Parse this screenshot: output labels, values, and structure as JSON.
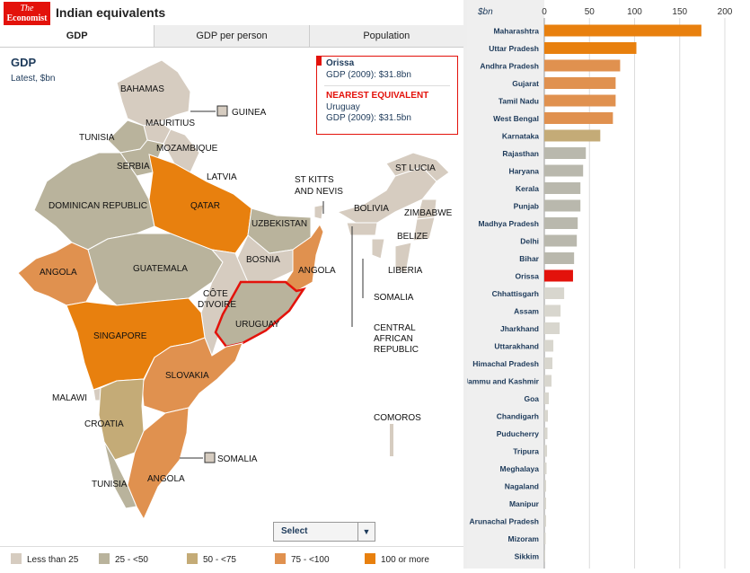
{
  "header": {
    "logo_line1": "The",
    "logo_line2": "Economist",
    "title": "Indian equivalents"
  },
  "tabs": [
    {
      "label": "GDP",
      "active": true
    },
    {
      "label": "GDP per person",
      "active": false
    },
    {
      "label": "Population",
      "active": false
    }
  ],
  "panel": {
    "title": "GDP",
    "subtitle": "Latest, $bn"
  },
  "infobox": {
    "state": "Orissa",
    "state_value": "GDP (2009): $31.8bn",
    "nearest_label": "NEAREST EQUIVALENT",
    "country": "Uruguay",
    "country_value": "GDP (2009): $31.5bn"
  },
  "map_labels": {
    "bahamas": "BAHAMAS",
    "guinea": "GUINEA",
    "mauritius": "MAURITIUS",
    "tunisia_north": "TUNISIA",
    "mozambique": "MOZAMBIQUE",
    "serbia": "SERBIA",
    "latvia": "LATVIA",
    "dominican": "DOMINICAN REPUBLIC",
    "qatar": "QATAR",
    "uzbekistan": "UZBEKISTAN",
    "stkitts1": "ST KITTS",
    "stkitts2": "AND NEVIS",
    "bolivia": "BOLIVIA",
    "stlucia": "ST LUCIA",
    "zimbabwe": "ZIMBABWE",
    "belize": "BELIZE",
    "angola_w": "ANGOLA",
    "guatemala": "GUATEMALA",
    "bosnia": "BOSNIA",
    "angola_e": "ANGOLA",
    "liberia": "LIBERIA",
    "cote1": "CÔTE",
    "cote2": "D'IVOIRE",
    "somalia_ne": "SOMALIA",
    "uruguay": "URUGUAY",
    "car1": "CENTRAL",
    "car2": "AFRICAN",
    "car3": "REPUBLIC",
    "singapore": "SINGAPORE",
    "slovakia": "SLOVAKIA",
    "malawi": "MALAWI",
    "croatia": "CROATIA",
    "comoros": "COMOROS",
    "somalia_s": "SOMALIA",
    "angola_s": "ANGOLA",
    "tunisia_south": "TUNISIA"
  },
  "select": {
    "value": "Select"
  },
  "legend": [
    {
      "label": "Less than 25",
      "color": "#d6ccc0"
    },
    {
      "label": "25 - <50",
      "color": "#b9b39c"
    },
    {
      "label": "50 - <75",
      "color": "#c4ab77"
    },
    {
      "label": "75 - <100",
      "color": "#e0914f"
    },
    {
      "label": "100 or more",
      "color": "#e8800e"
    }
  ],
  "colors": {
    "highlight": "#e3120b",
    "grey_bar": "#b9b8ad",
    "light_bar": "#d8d6ce"
  },
  "chart_data": {
    "type": "bar",
    "orientation": "horizontal",
    "unit_label": "$bn",
    "xlim": [
      0,
      200
    ],
    "ticks": [
      0,
      50,
      100,
      150,
      200
    ],
    "highlight": "Orissa",
    "categories": [
      "Maharashtra",
      "Uttar Pradesh",
      "Andhra Pradesh",
      "Gujarat",
      "Tamil Nadu",
      "West Bengal",
      "Karnataka",
      "Rajasthan",
      "Haryana",
      "Kerala",
      "Punjab",
      "Madhya Pradesh",
      "Delhi",
      "Bihar",
      "Orissa",
      "Chhattisgarh",
      "Assam",
      "Jharkhand",
      "Uttarakhand",
      "Himachal Pradesh",
      "Jammu and Kashmir",
      "Goa",
      "Chandigarh",
      "Puducherry",
      "Tripura",
      "Meghalaya",
      "Nagaland",
      "Manipur",
      "Arunachal Pradesh",
      "Mizoram",
      "Sikkim"
    ],
    "values": [
      174,
      102,
      84,
      79,
      79,
      76,
      62,
      46,
      43,
      40,
      40,
      37,
      36,
      33,
      31.8,
      22,
      18,
      17,
      10,
      9,
      8,
      5,
      4,
      3.5,
      3,
      2.5,
      2,
      2,
      2,
      1.5,
      1
    ]
  }
}
